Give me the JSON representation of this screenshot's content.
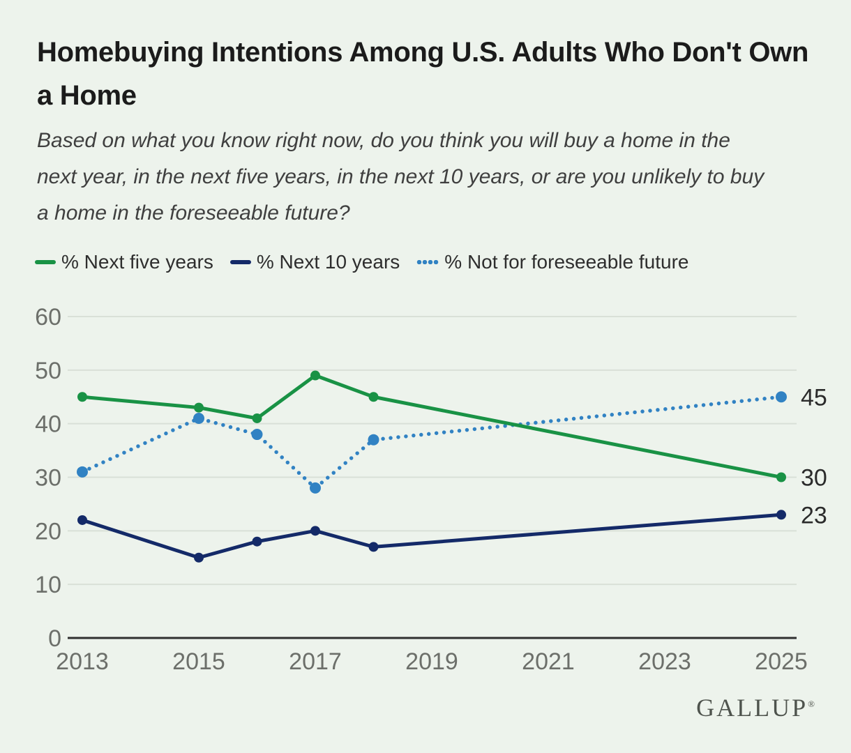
{
  "title_lines": [
    "Homebuying Intentions Among U.S. Adults Who Don't Own",
    "a Home"
  ],
  "subtitle_lines": [
    "Based on what you know right now, do you think you will buy a home in the",
    "next year, in the next five years, in the next 10 years, or are you unlikely to buy",
    "a home in the foreseeable future?"
  ],
  "legend": [
    {
      "label": "% Next five years",
      "color": "#199245",
      "style": "solid"
    },
    {
      "label": "% Next 10 years",
      "color": "#142a68",
      "style": "solid"
    },
    {
      "label": "% Not for foreseeable future",
      "color": "#3182c3",
      "style": "dotted"
    }
  ],
  "chart_data": {
    "type": "line",
    "x": [
      2013,
      2015,
      2016,
      2017,
      2018,
      2025
    ],
    "series": [
      {
        "name": "% Next five years",
        "color": "#199245",
        "style": "solid",
        "values": [
          45,
          43,
          41,
          49,
          45,
          30
        ],
        "end_label": "30"
      },
      {
        "name": "% Next 10 years",
        "color": "#142a68",
        "style": "solid",
        "values": [
          22,
          15,
          18,
          20,
          17,
          23
        ],
        "end_label": "23"
      },
      {
        "name": "% Not for foreseeable future",
        "color": "#3182c3",
        "style": "dotted",
        "values": [
          31,
          41,
          38,
          28,
          37,
          45
        ],
        "end_label": "45"
      }
    ],
    "x_ticks": [
      "2013",
      "2015",
      "2017",
      "2019",
      "2021",
      "2023",
      "2025"
    ],
    "x_tick_years": [
      2013,
      2015,
      2017,
      2019,
      2021,
      2023,
      2025
    ],
    "y_ticks": [
      0,
      10,
      20,
      30,
      40,
      50,
      60
    ],
    "ylim": [
      0,
      60
    ],
    "xlim": [
      2013,
      2025
    ],
    "grid": "horizontal",
    "legend_position": "top",
    "title": "Homebuying Intentions Among U.S. Adults Who Don't Own a Home",
    "xlabel": "",
    "ylabel": ""
  },
  "style_colors": {
    "background": "#edf3ec",
    "gridline": "#d9e0d7",
    "axis": "#2f2f2f",
    "tick_text": "#6c6f6a",
    "end_label_text": "#2b2b2b",
    "title_text": "#1b1b1b",
    "subtitle_text": "#3f3f3f"
  },
  "footer": {
    "logo": "GALLUP",
    "registered": "®"
  }
}
